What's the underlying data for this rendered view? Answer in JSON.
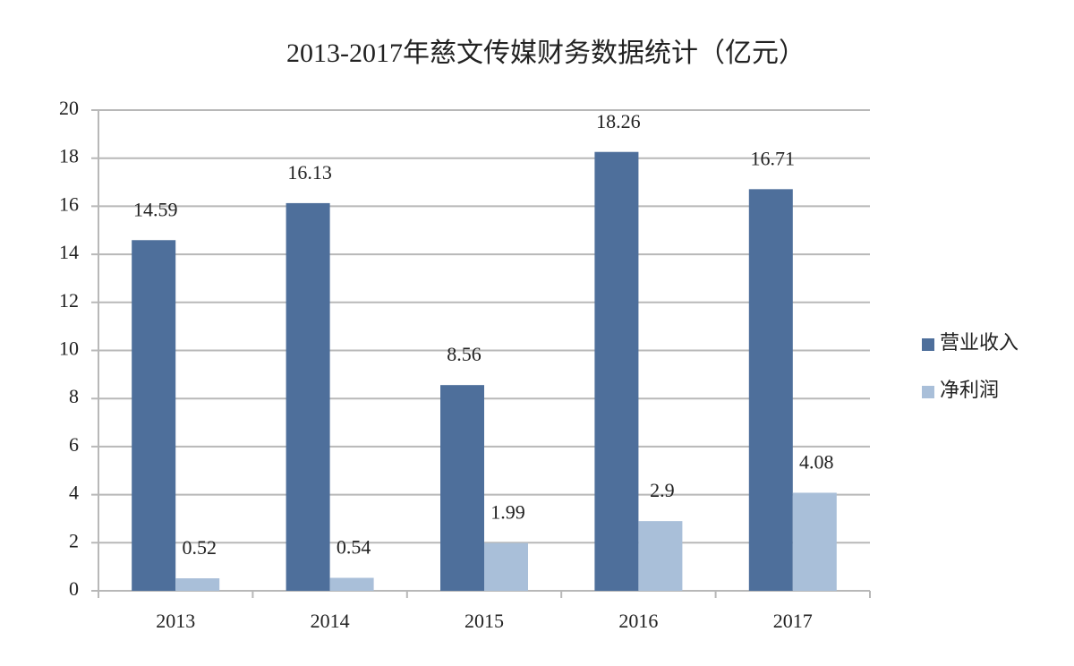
{
  "chart_data": {
    "type": "bar",
    "title": "2013-2017年慈文传媒财务数据统计（亿元）",
    "categories": [
      "2013",
      "2014",
      "2015",
      "2016",
      "2017"
    ],
    "series": [
      {
        "name": "营业收入",
        "color": "#4e6f9b",
        "values": [
          14.59,
          16.13,
          8.56,
          18.26,
          16.71
        ]
      },
      {
        "name": "净利润",
        "color": "#a9bfd9",
        "values": [
          0.52,
          0.54,
          1.99,
          2.9,
          4.08
        ]
      }
    ],
    "ylim": [
      0,
      20
    ],
    "yticks": [
      0,
      2,
      4,
      6,
      8,
      10,
      12,
      14,
      16,
      18,
      20
    ],
    "grid": true,
    "legend": "right",
    "data_labels": true
  }
}
